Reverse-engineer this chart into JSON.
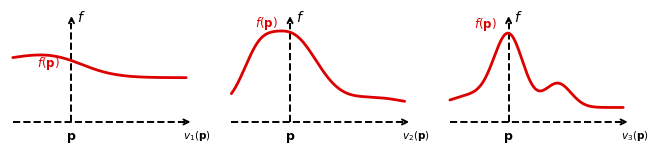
{
  "background_color": "#ffffff",
  "fig_width": 6.4,
  "fig_height": 1.37,
  "curve_color": "#dd0000",
  "axis_color": "#000000",
  "dashed_color": "#000000",
  "curve_linewidth": 2.0,
  "axis_linewidth": 1.4,
  "dashed_linewidth": 1.4,
  "panels": [
    {
      "v_label": "$v_1(\\mathbf{p})$"
    },
    {
      "v_label": "$v_2(\\mathbf{p})$"
    },
    {
      "v_label": "$v_3(\\mathbf{p})$"
    }
  ]
}
